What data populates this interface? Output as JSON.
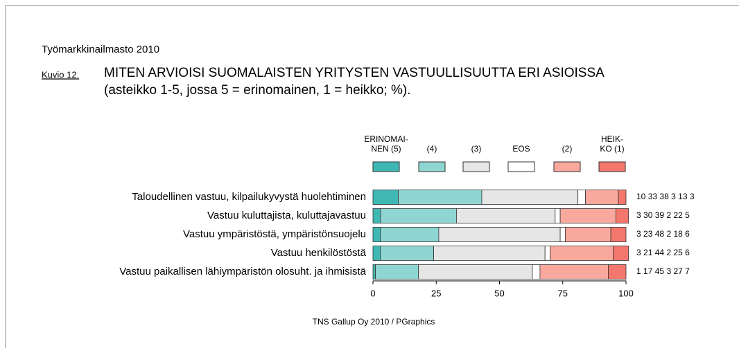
{
  "chart_data": {
    "type": "stacked_bar",
    "header": "Työmarkkinailmasto 2010",
    "figure_label": "Kuvio 12.",
    "title": "MITEN ARVIOISI SUOMALAISTEN YRITYSTEN VASTUULLISUUTTA ERI ASIOISSA",
    "subtitle": "(asteikko 1-5, jossa 5 = erinomainen, 1 = heikko; %).",
    "source": "TNS Gallup Oy  2010 / PGraphics",
    "categories": [
      "Taloudellinen vastuu, kilpailukyvystä huolehtiminen",
      "Vastuu kuluttajista, kuluttajavastuu",
      "Vastuu ympäristöstä, ympäristönsuojelu",
      "Vastuu henkilöstöstä",
      "Vastuu paikallisen lähiympäristön olosuht. ja ihmisistä"
    ],
    "series": [
      {
        "name": "ERINOMAI-\nNEN (5)",
        "color": "#3fb8b4",
        "values": [
          10,
          3,
          3,
          3,
          1
        ]
      },
      {
        "name": "(4)",
        "color": "#8fd6d2",
        "values": [
          33,
          30,
          23,
          21,
          17
        ]
      },
      {
        "name": "(3)",
        "color": "#e6e6e6",
        "values": [
          38,
          39,
          48,
          44,
          45
        ]
      },
      {
        "name": "EOS",
        "color": "#ffffff",
        "values": [
          3,
          2,
          2,
          2,
          3
        ]
      },
      {
        "name": "(2)",
        "color": "#f9a89e",
        "values": [
          13,
          22,
          18,
          25,
          27
        ]
      },
      {
        "name": "HEIK-\nKO (1)",
        "color": "#f4776e",
        "values": [
          3,
          5,
          6,
          6,
          7
        ]
      }
    ],
    "xlim": [
      0,
      100
    ],
    "xticks": [
      0,
      25,
      50,
      75,
      100
    ]
  }
}
